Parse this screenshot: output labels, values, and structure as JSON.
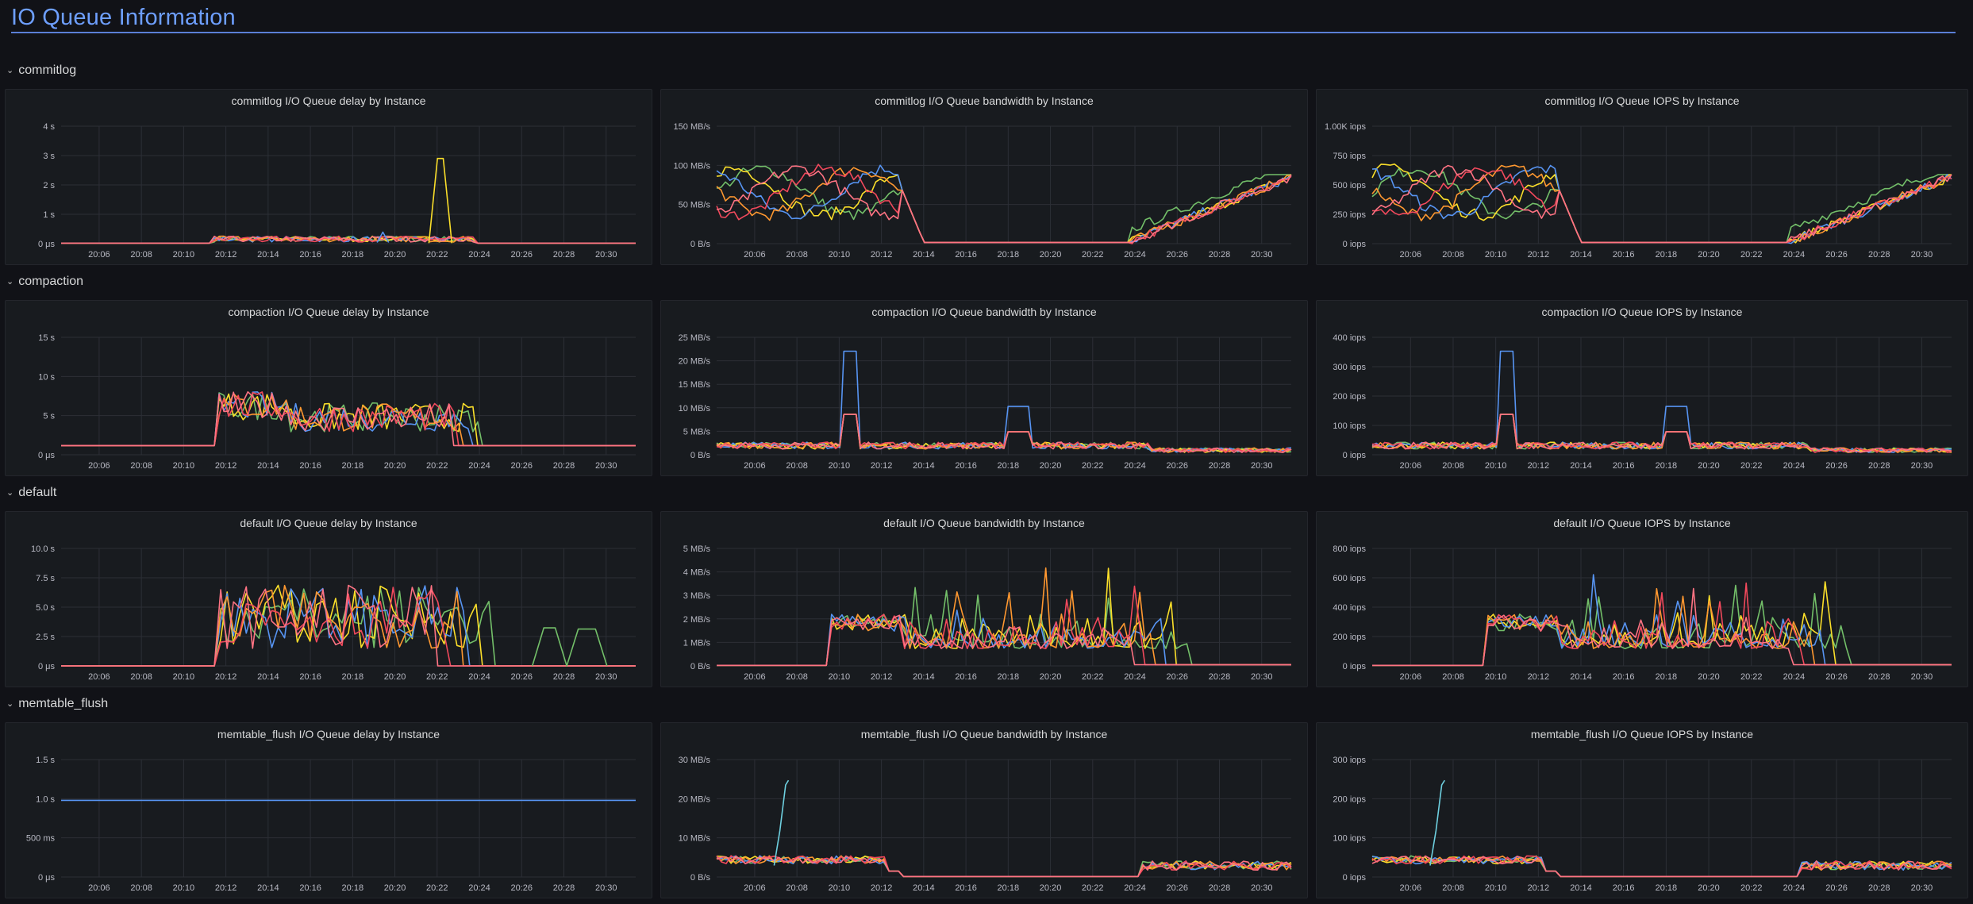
{
  "header": {
    "title": "IO Queue Information"
  },
  "x_ticks": [
    "20:06",
    "20:08",
    "20:10",
    "20:12",
    "20:14",
    "20:16",
    "20:18",
    "20:20",
    "20:22",
    "20:24",
    "20:26",
    "20:28",
    "20:30"
  ],
  "colors": {
    "green": "#73bf69",
    "yellow": "#fade2a",
    "blue": "#5794f2",
    "orange": "#ff9830",
    "red": "#f2495c",
    "cyan": "#8ab8ff",
    "lightblue": "#6ed0e0",
    "softred": "#ff7383"
  },
  "rows": [
    {
      "label": "commitlog",
      "panels": [
        {
          "title": "commitlog I/O Queue delay by Instance",
          "yticks": [
            "0 μs",
            "1 s",
            "2 s",
            "3 s",
            "4 s"
          ],
          "kind": "commitlog-delay"
        },
        {
          "title": "commitlog I/O Queue bandwidth by Instance",
          "yticks": [
            "0 B/s",
            "50 MB/s",
            "100 MB/s",
            "150 MB/s"
          ],
          "kind": "commitlog-bw"
        },
        {
          "title": "commitlog I/O Queue IOPS by Instance",
          "yticks": [
            "0 iops",
            "250 iops",
            "500 iops",
            "750 iops",
            "1.00K iops"
          ],
          "kind": "commitlog-iops"
        }
      ]
    },
    {
      "label": "compaction",
      "panels": [
        {
          "title": "compaction I/O Queue delay by Instance",
          "yticks": [
            "0 μs",
            "5 s",
            "10 s",
            "15 s"
          ],
          "kind": "compaction-delay"
        },
        {
          "title": "compaction I/O Queue bandwidth by Instance",
          "yticks": [
            "0 B/s",
            "5 MB/s",
            "10 MB/s",
            "15 MB/s",
            "20 MB/s",
            "25 MB/s"
          ],
          "kind": "compaction-bw"
        },
        {
          "title": "compaction I/O Queue IOPS by Instance",
          "yticks": [
            "0 iops",
            "100 iops",
            "200 iops",
            "300 iops",
            "400 iops"
          ],
          "kind": "compaction-iops"
        }
      ]
    },
    {
      "label": "default",
      "panels": [
        {
          "title": "default I/O Queue delay by Instance",
          "yticks": [
            "0 μs",
            "2.5 s",
            "5.0 s",
            "7.5 s",
            "10.0 s"
          ],
          "kind": "default-delay"
        },
        {
          "title": "default I/O Queue bandwidth by Instance",
          "yticks": [
            "0 B/s",
            "1 MB/s",
            "2 MB/s",
            "3 MB/s",
            "4 MB/s",
            "5 MB/s"
          ],
          "kind": "default-bw"
        },
        {
          "title": "default I/O Queue IOPS by Instance",
          "yticks": [
            "0 iops",
            "200 iops",
            "400 iops",
            "600 iops",
            "800 iops"
          ],
          "kind": "default-iops"
        }
      ]
    },
    {
      "label": "memtable_flush",
      "panels": [
        {
          "title": "memtable_flush I/O Queue delay by Instance",
          "yticks": [
            "0 μs",
            "500 ms",
            "1.0 s",
            "1.5 s"
          ],
          "kind": "memtable-delay"
        },
        {
          "title": "memtable_flush I/O Queue bandwidth by Instance",
          "yticks": [
            "0 B/s",
            "10 MB/s",
            "20 MB/s",
            "30 MB/s"
          ],
          "kind": "memtable-bw"
        },
        {
          "title": "memtable_flush I/O Queue IOPS by Instance",
          "yticks": [
            "0 iops",
            "100 iops",
            "200 iops",
            "300 iops"
          ],
          "kind": "memtable-iops"
        }
      ]
    }
  ]
}
